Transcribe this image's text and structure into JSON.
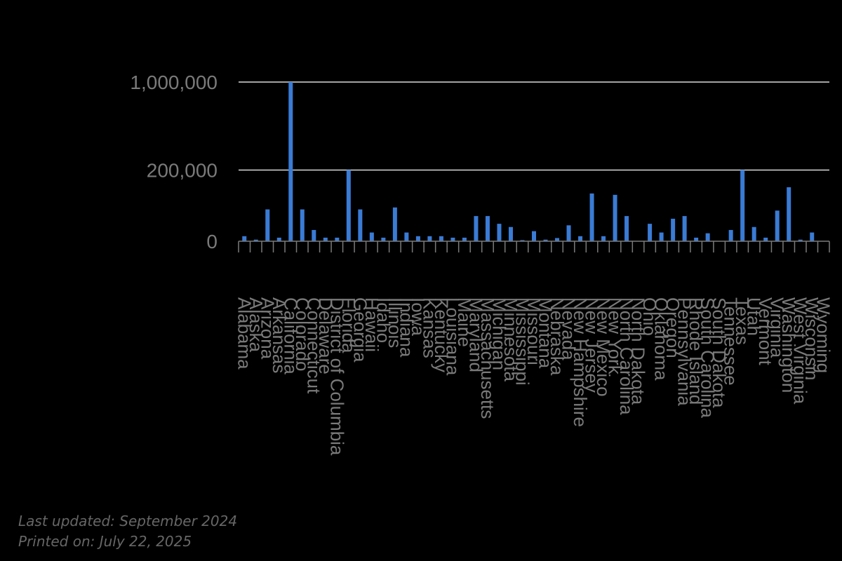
{
  "chart_data": {
    "type": "bar",
    "title": "",
    "xlabel": "",
    "ylabel": "",
    "y_scale": "sqrt",
    "ylim": [
      0,
      1000000
    ],
    "y_ticks": [
      0,
      200000,
      1000000
    ],
    "y_tick_labels": [
      "0",
      "200,000",
      "1,000,000"
    ],
    "grid": true,
    "colors": {
      "bar": "#3a7bd5",
      "grid": "#d9d9d9",
      "axis": "#7a7a7a",
      "tick_text": "#7a7a7a"
    },
    "categories": [
      "Alabama",
      "Alaska",
      "Arizona",
      "Arkansas",
      "California",
      "Colorado",
      "Connecticut",
      "Delaware",
      "District of Columbia",
      "Florida",
      "Georgia",
      "Hawaii",
      "Idaho",
      "Illinois",
      "Indiana",
      "Iowa",
      "Kansas",
      "Kentucky",
      "Louisiana",
      "Maine",
      "Maryland",
      "Massachusetts",
      "Michigan",
      "Minnesota",
      "Mississippi",
      "Missouri",
      "Montana",
      "Nebraska",
      "Nevada",
      "New Hampshire",
      "New Jersey",
      "New Mexico",
      "New York",
      "North Carolina",
      "North Dakota",
      "Ohio",
      "Oklahoma",
      "Oregon",
      "Pennsylvania",
      "Rhode Island",
      "South Carolina",
      "South Dakota",
      "Tennessee",
      "Texas",
      "Utah",
      "Vermont",
      "Virginia",
      "Washington",
      "West Virginia",
      "Wisconsin",
      "Wyoming"
    ],
    "values": [
      1000,
      100,
      40000,
      500,
      1000000,
      40000,
      5000,
      500,
      500,
      200000,
      40000,
      3000,
      500,
      45000,
      3000,
      1000,
      1000,
      1000,
      500,
      500,
      25000,
      25000,
      12000,
      8000,
      50,
      4000,
      100,
      400,
      10000,
      1000,
      90000,
      1000,
      85000,
      25000,
      0,
      12000,
      3000,
      20000,
      25000,
      500,
      2500,
      0,
      5000,
      200000,
      8000,
      500,
      37000,
      115000,
      100,
      3000,
      0
    ]
  },
  "footer": {
    "last_updated": "Last updated: September 2024",
    "printed_on": "Printed on: July 22, 2025"
  }
}
